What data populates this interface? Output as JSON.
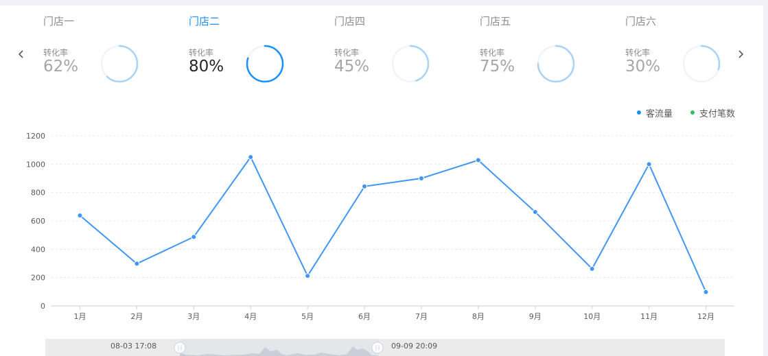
{
  "nav": {
    "prev_icon": "chevron-left-icon",
    "next_icon": "chevron-right-icon"
  },
  "stores": [
    {
      "name": "门店一",
      "rate_label": "转化率",
      "rate_text": "62%",
      "rate": 0.62,
      "active": false
    },
    {
      "name": "门店二",
      "rate_label": "转化率",
      "rate_text": "80%",
      "rate": 0.8,
      "active": true
    },
    {
      "name": "门店四",
      "rate_label": "转化率",
      "rate_text": "45%",
      "rate": 0.45,
      "active": false
    },
    {
      "name": "门店五",
      "rate_label": "转化率",
      "rate_text": "75%",
      "rate": 0.75,
      "active": false
    },
    {
      "name": "门店六",
      "rate_label": "转化率",
      "rate_text": "30%",
      "rate": 0.3,
      "active": false
    }
  ],
  "colors": {
    "active_ring": "#1890ff",
    "inactive_ring": "#a8d3f7",
    "ring_track": "#f0f4f8",
    "line": "#3f96f5",
    "legend_flow": "#1890ff",
    "legend_pay": "#2fc25b",
    "slider_shape": "#c2c8d2"
  },
  "legend": {
    "flow": "客流量",
    "pay": "支付笔数"
  },
  "chart_data": {
    "type": "line",
    "categories": [
      "1月",
      "2月",
      "3月",
      "4月",
      "5月",
      "6月",
      "7月",
      "8月",
      "9月",
      "10月",
      "11月",
      "12月"
    ],
    "series": [
      {
        "name": "客流量",
        "values": [
          638,
          298,
          487,
          1050,
          212,
          843,
          900,
          1028,
          663,
          262,
          1000,
          98
        ]
      }
    ],
    "ylim": [
      0,
      1200
    ],
    "yticks": [
      "0",
      "200",
      "400",
      "600",
      "800",
      "1000",
      "1200"
    ],
    "grid": true,
    "legend_position": "top-right"
  },
  "slider": {
    "start_label": "08-03 17:08",
    "end_label": "09-09 20:09"
  }
}
